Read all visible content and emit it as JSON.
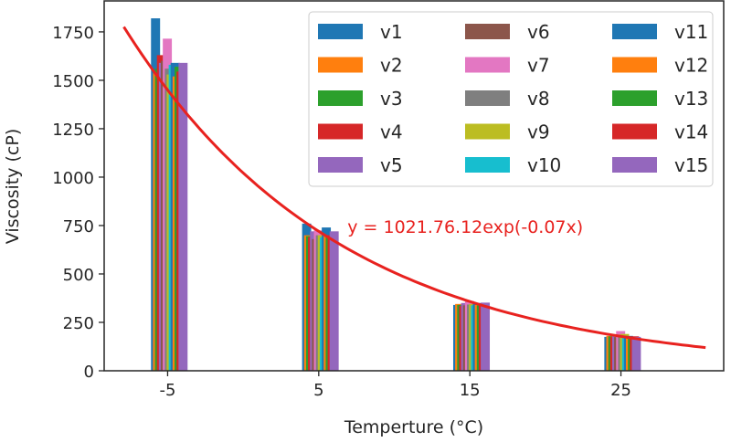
{
  "chart_data": {
    "type": "bar",
    "title": "",
    "xlabel": "Temperture (°C)",
    "xlabel_parts": {
      "pre": "Temperture (",
      "sup": "o",
      "post": "C)"
    },
    "ylabel": "Viscosity (cP)",
    "categories": [
      -5,
      5,
      15,
      25
    ],
    "xticks": [
      "-5",
      "5",
      "15",
      "25"
    ],
    "yticks": [
      "0",
      "250",
      "500",
      "750",
      "1000",
      "1250",
      "1500",
      "1750"
    ],
    "xlim": [
      -9.2,
      31.8
    ],
    "ylim": [
      0,
      1910
    ],
    "grid": false,
    "legend_placement": "top-right",
    "series": [
      {
        "name": "v1",
        "color": "#1f77b4",
        "values": [
          1820,
          760,
          340,
          175
        ]
      },
      {
        "name": "v2",
        "color": "#ff7f0e",
        "values": [
          1540,
          700,
          345,
          180
        ]
      },
      {
        "name": "v3",
        "color": "#2ca02c",
        "values": [
          1560,
          695,
          340,
          178
        ]
      },
      {
        "name": "v4",
        "color": "#d62728",
        "values": [
          1630,
          690,
          335,
          176
        ]
      },
      {
        "name": "v5",
        "color": "#9467bd",
        "values": [
          1590,
          720,
          350,
          182
        ]
      },
      {
        "name": "v6",
        "color": "#8c564b",
        "values": [
          1600,
          680,
          338,
          174
        ]
      },
      {
        "name": "v7",
        "color": "#e377c2",
        "values": [
          1715,
          725,
          360,
          205
        ]
      },
      {
        "name": "v8",
        "color": "#7f7f7f",
        "values": [
          1560,
          700,
          342,
          178
        ]
      },
      {
        "name": "v9",
        "color": "#bcbd22",
        "values": [
          1530,
          700,
          345,
          190
        ]
      },
      {
        "name": "v10",
        "color": "#17becf",
        "values": [
          1580,
          690,
          338,
          176
        ]
      },
      {
        "name": "v11",
        "color": "#1f77b4",
        "values": [
          1590,
          740,
          350,
          180
        ]
      },
      {
        "name": "v12",
        "color": "#ff7f0e",
        "values": [
          1520,
          700,
          340,
          177
        ]
      },
      {
        "name": "v13",
        "color": "#2ca02c",
        "values": [
          1570,
          690,
          338,
          176
        ]
      },
      {
        "name": "v14",
        "color": "#d62728",
        "values": [
          1545,
          700,
          342,
          178
        ]
      },
      {
        "name": "v15",
        "color": "#9467bd",
        "values": [
          1590,
          720,
          352,
          175
        ]
      }
    ],
    "fit": {
      "type": "exponential",
      "A": 1021.76,
      "k": -0.07,
      "x_range": [
        -7.9,
        30.6
      ],
      "color": "#e8221f",
      "label": "y = 1021.76.12exp(-0.07x)",
      "label_at": [
        6.9,
        745
      ]
    }
  }
}
